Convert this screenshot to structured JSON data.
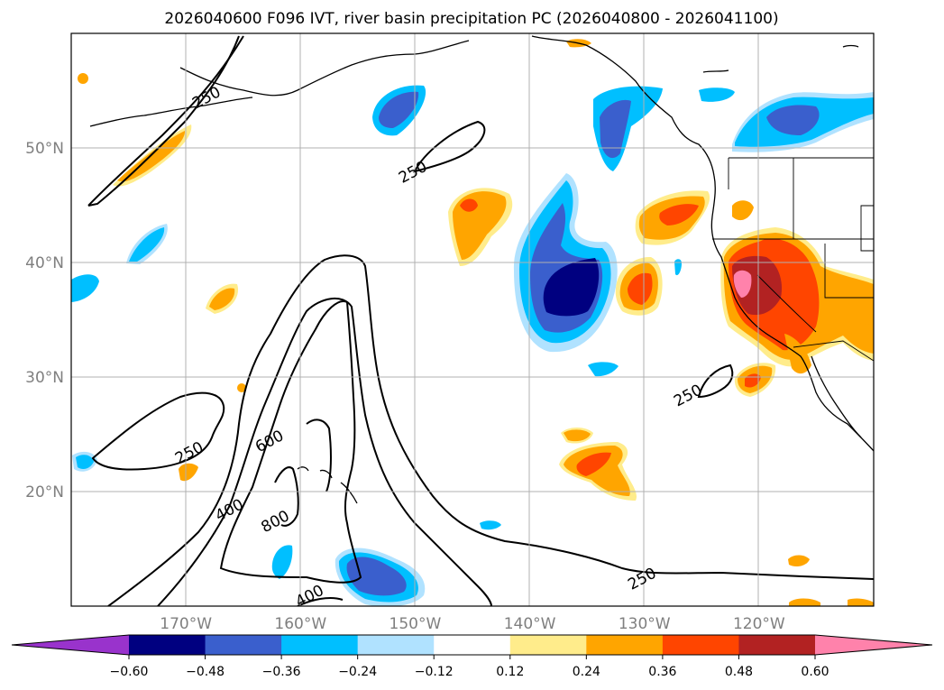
{
  "chart_data": {
    "type": "heatmap",
    "title": "2026040600 F096 IVT, river basin precipitation PC (2026040800 - 2026041100)",
    "projection": "map",
    "lon_range": [
      -180,
      -110
    ],
    "lat_range": [
      10,
      60
    ],
    "grid": true,
    "x_ticks": [
      {
        "value": -170,
        "label": "170°W"
      },
      {
        "value": -160,
        "label": "160°W"
      },
      {
        "value": -150,
        "label": "150°W"
      },
      {
        "value": -140,
        "label": "140°W"
      },
      {
        "value": -130,
        "label": "130°W"
      },
      {
        "value": -120,
        "label": "120°W"
      }
    ],
    "y_ticks": [
      {
        "value": 20,
        "label": "20°N"
      },
      {
        "value": 30,
        "label": "30°N"
      },
      {
        "value": 40,
        "label": "40°N"
      },
      {
        "value": 50,
        "label": "50°N"
      }
    ],
    "colorbar": {
      "extend": "both",
      "boundaries": [
        -0.6,
        -0.48,
        -0.36,
        -0.24,
        -0.12,
        0.12,
        0.24,
        0.36,
        0.48,
        0.6
      ],
      "labels": [
        "−0.60",
        "−0.48",
        "−0.36",
        "−0.24",
        "−0.12",
        "0.12",
        "0.24",
        "0.36",
        "0.48",
        "0.60"
      ],
      "colors": [
        "#9933cc",
        "#000080",
        "#3a5fcd",
        "#00bfff",
        "#b0e2ff",
        "#ffffff",
        "#ffec8b",
        "#ffa500",
        "#ff4500",
        "#b22222",
        "#ff82ab"
      ]
    },
    "contour_levels": [
      250,
      400,
      600,
      800
    ],
    "contour_labels": [
      {
        "text": "250",
        "lon": -168,
        "lat": 54
      },
      {
        "text": "250",
        "lon": -150,
        "lat": 47.5
      },
      {
        "text": "250",
        "lon": -169.5,
        "lat": 23
      },
      {
        "text": "250",
        "lon": -126,
        "lat": 28
      },
      {
        "text": "250",
        "lon": -130,
        "lat": 12
      },
      {
        "text": "600",
        "lon": -162.5,
        "lat": 24
      },
      {
        "text": "400",
        "lon": -166,
        "lat": 18
      },
      {
        "text": "800",
        "lon": -162,
        "lat": 17
      },
      {
        "text": "400",
        "lon": -159,
        "lat": 10.5
      }
    ]
  }
}
